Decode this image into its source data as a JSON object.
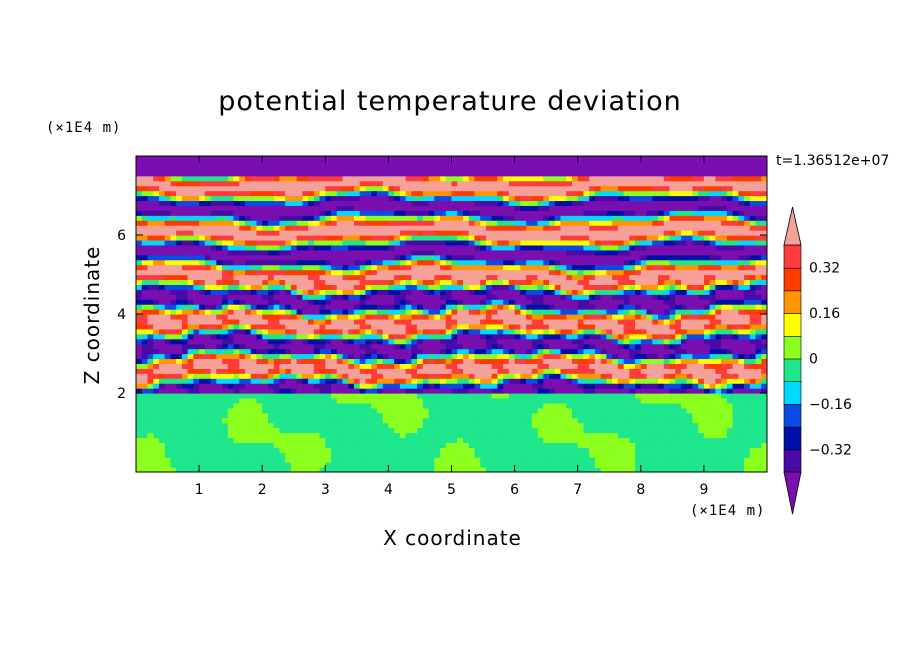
{
  "chart_data": {
    "type": "heatmap",
    "title": "potential temperature deviation",
    "xlabel": "X coordinate",
    "ylabel": "Z coordinate",
    "x_unit": "(×1E4 m)",
    "y_unit": "(×1E4 m)",
    "time_label": "t=1.36512e+07",
    "xlim": [
      0,
      10
    ],
    "ylim": [
      0,
      8
    ],
    "x_ticks": [
      "1",
      "2",
      "3",
      "4",
      "5",
      "6",
      "7",
      "8",
      "9"
    ],
    "y_ticks": [
      "2",
      "4",
      "6"
    ],
    "colorbar": {
      "levels": [
        -0.4,
        -0.32,
        -0.24,
        -0.16,
        -0.08,
        0,
        0.08,
        0.16,
        0.24,
        0.32,
        0.4
      ],
      "labels": [
        "0.32",
        "0.16",
        "0",
        "−0.16",
        "−0.32"
      ],
      "label_values": [
        0.32,
        0.16,
        0,
        -0.16,
        -0.32
      ],
      "colors": [
        "#7a0fb0",
        "#4b0aa8",
        "#000fa8",
        "#0a4be6",
        "#00d8ff",
        "#1ee68c",
        "#8cff1e",
        "#ffff00",
        "#ff9600",
        "#ff3c00",
        "#ff3c3c",
        "#f6a09a"
      ],
      "extend": "both"
    },
    "regions": [
      {
        "z_range": [
          0,
          2.0
        ],
        "description": "boundary layer",
        "dominant_value": -0.04,
        "secondary_value": 0.04
      },
      {
        "z_range": [
          2.0,
          7.8
        ],
        "description": "banded layers",
        "alternating_values": [
          0.45,
          -0.45
        ]
      }
    ]
  }
}
